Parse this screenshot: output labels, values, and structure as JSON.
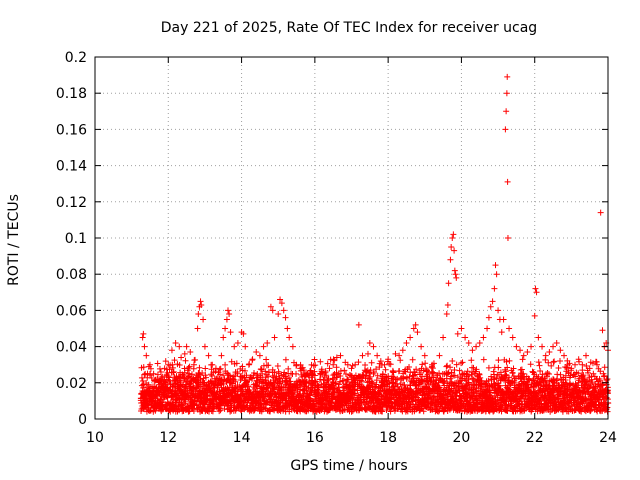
{
  "chart_data": {
    "type": "scatter",
    "title": "Day 221 of 2025, Rate Of TEC Index for receiver ucag",
    "xlabel": "GPS time / hours",
    "ylabel": "ROTI / TECUs",
    "xlim": [
      10,
      24
    ],
    "ylim": [
      0,
      0.2
    ],
    "xticks": [
      10,
      12,
      14,
      16,
      18,
      20,
      22,
      24
    ],
    "xtick_labels": [
      "10",
      "12",
      "14",
      "16",
      "18",
      "20",
      "22",
      "24"
    ],
    "yticks": [
      0,
      0.02,
      0.04,
      0.06,
      0.08,
      0.1,
      0.12,
      0.14,
      0.16,
      0.18,
      0.2
    ],
    "ytick_labels": [
      "0",
      "0.02",
      "0.04",
      "0.06",
      "0.08",
      "0.1",
      "0.12",
      "0.14",
      "0.16",
      "0.18",
      "0.2"
    ],
    "grid": true,
    "marker": "+",
    "color": "#ff0000",
    "series": [
      {
        "name": "ROTI",
        "points": [
          [
            11.3,
            0.045
          ],
          [
            11.32,
            0.047
          ],
          [
            11.35,
            0.04
          ],
          [
            11.4,
            0.035
          ],
          [
            11.5,
            0.03
          ],
          [
            11.6,
            0.025
          ],
          [
            11.7,
            0.022
          ],
          [
            11.8,
            0.026
          ],
          [
            11.9,
            0.028
          ],
          [
            12.0,
            0.03
          ],
          [
            12.1,
            0.038
          ],
          [
            12.2,
            0.042
          ],
          [
            12.3,
            0.04
          ],
          [
            12.35,
            0.034
          ],
          [
            12.45,
            0.036
          ],
          [
            12.5,
            0.04
          ],
          [
            12.6,
            0.037
          ],
          [
            12.7,
            0.03
          ],
          [
            12.8,
            0.05
          ],
          [
            12.82,
            0.058
          ],
          [
            12.85,
            0.062
          ],
          [
            12.88,
            0.065
          ],
          [
            12.9,
            0.063
          ],
          [
            12.95,
            0.055
          ],
          [
            13.0,
            0.04
          ],
          [
            13.1,
            0.035
          ],
          [
            13.2,
            0.03
          ],
          [
            13.3,
            0.028
          ],
          [
            13.45,
            0.035
          ],
          [
            13.5,
            0.045
          ],
          [
            13.55,
            0.05
          ],
          [
            13.6,
            0.055
          ],
          [
            13.63,
            0.06
          ],
          [
            13.66,
            0.058
          ],
          [
            13.7,
            0.048
          ],
          [
            13.8,
            0.04
          ],
          [
            13.9,
            0.042
          ],
          [
            14.0,
            0.048
          ],
          [
            14.05,
            0.047
          ],
          [
            14.1,
            0.04
          ],
          [
            14.2,
            0.03
          ],
          [
            14.3,
            0.033
          ],
          [
            14.4,
            0.037
          ],
          [
            14.5,
            0.035
          ],
          [
            14.6,
            0.04
          ],
          [
            14.7,
            0.042
          ],
          [
            14.8,
            0.062
          ],
          [
            14.85,
            0.06
          ],
          [
            14.9,
            0.045
          ],
          [
            15.0,
            0.058
          ],
          [
            15.05,
            0.066
          ],
          [
            15.1,
            0.064
          ],
          [
            15.15,
            0.06
          ],
          [
            15.2,
            0.056
          ],
          [
            15.25,
            0.05
          ],
          [
            15.3,
            0.045
          ],
          [
            15.4,
            0.04
          ],
          [
            15.5,
            0.03
          ],
          [
            15.6,
            0.028
          ],
          [
            15.7,
            0.027
          ],
          [
            15.8,
            0.025
          ],
          [
            16.0,
            0.024
          ],
          [
            16.2,
            0.025
          ],
          [
            16.4,
            0.028
          ],
          [
            16.5,
            0.03
          ],
          [
            16.6,
            0.034
          ],
          [
            16.7,
            0.035
          ],
          [
            16.9,
            0.03
          ],
          [
            17.0,
            0.028
          ],
          [
            17.1,
            0.03
          ],
          [
            17.2,
            0.052
          ],
          [
            17.3,
            0.035
          ],
          [
            17.45,
            0.036
          ],
          [
            17.5,
            0.042
          ],
          [
            17.6,
            0.04
          ],
          [
            17.7,
            0.035
          ],
          [
            17.8,
            0.032
          ],
          [
            17.9,
            0.03
          ],
          [
            18.0,
            0.033
          ],
          [
            18.2,
            0.036
          ],
          [
            18.3,
            0.035
          ],
          [
            18.4,
            0.038
          ],
          [
            18.5,
            0.042
          ],
          [
            18.6,
            0.045
          ],
          [
            18.7,
            0.05
          ],
          [
            18.75,
            0.052
          ],
          [
            18.8,
            0.048
          ],
          [
            18.9,
            0.04
          ],
          [
            19.0,
            0.035
          ],
          [
            19.2,
            0.03
          ],
          [
            19.4,
            0.035
          ],
          [
            19.5,
            0.045
          ],
          [
            19.6,
            0.058
          ],
          [
            19.63,
            0.063
          ],
          [
            19.65,
            0.075
          ],
          [
            19.7,
            0.088
          ],
          [
            19.72,
            0.095
          ],
          [
            19.75,
            0.1
          ],
          [
            19.78,
            0.102
          ],
          [
            19.8,
            0.093
          ],
          [
            19.82,
            0.082
          ],
          [
            19.84,
            0.08
          ],
          [
            19.86,
            0.078
          ],
          [
            19.9,
            0.047
          ],
          [
            20.0,
            0.05
          ],
          [
            20.1,
            0.045
          ],
          [
            20.2,
            0.042
          ],
          [
            20.3,
            0.038
          ],
          [
            20.4,
            0.04
          ],
          [
            20.5,
            0.042
          ],
          [
            20.6,
            0.045
          ],
          [
            20.7,
            0.05
          ],
          [
            20.75,
            0.056
          ],
          [
            20.8,
            0.062
          ],
          [
            20.85,
            0.065
          ],
          [
            20.9,
            0.072
          ],
          [
            20.93,
            0.085
          ],
          [
            20.96,
            0.08
          ],
          [
            21.0,
            0.06
          ],
          [
            21.05,
            0.055
          ],
          [
            21.1,
            0.048
          ],
          [
            21.15,
            0.055
          ],
          [
            21.2,
            0.16
          ],
          [
            21.22,
            0.17
          ],
          [
            21.24,
            0.18
          ],
          [
            21.25,
            0.189
          ],
          [
            21.26,
            0.131
          ],
          [
            21.27,
            0.1
          ],
          [
            21.3,
            0.05
          ],
          [
            21.4,
            0.045
          ],
          [
            21.5,
            0.04
          ],
          [
            21.6,
            0.038
          ],
          [
            21.7,
            0.035
          ],
          [
            21.8,
            0.037
          ],
          [
            21.9,
            0.04
          ],
          [
            22.0,
            0.057
          ],
          [
            22.02,
            0.072
          ],
          [
            22.05,
            0.07
          ],
          [
            22.1,
            0.045
          ],
          [
            22.2,
            0.04
          ],
          [
            22.3,
            0.035
          ],
          [
            22.4,
            0.037
          ],
          [
            22.5,
            0.04
          ],
          [
            22.6,
            0.042
          ],
          [
            22.7,
            0.038
          ],
          [
            22.8,
            0.035
          ],
          [
            22.9,
            0.03
          ],
          [
            23.0,
            0.028
          ],
          [
            23.1,
            0.03
          ],
          [
            23.2,
            0.033
          ],
          [
            23.3,
            0.03
          ],
          [
            23.4,
            0.035
          ],
          [
            23.5,
            0.028
          ],
          [
            23.6,
            0.025
          ],
          [
            23.7,
            0.03
          ],
          [
            23.8,
            0.114
          ],
          [
            23.85,
            0.049
          ],
          [
            23.9,
            0.04
          ],
          [
            23.95,
            0.042
          ],
          [
            24.0,
            0.038
          ]
        ]
      }
    ],
    "band": {
      "x_start": 11.25,
      "x_end": 24.0,
      "base_low": 0.004,
      "base_high": 0.022
    }
  }
}
